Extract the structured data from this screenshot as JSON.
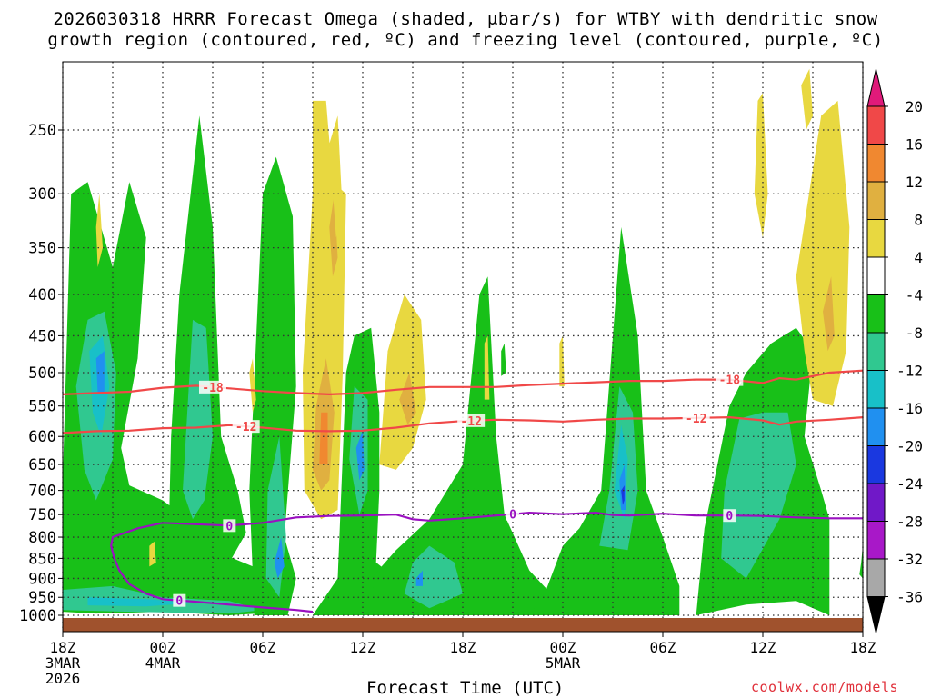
{
  "chart_data": {
    "type": "heatmap",
    "title_line1": "2026030318 HRRR Forecast Omega (shaded, μbar/s) for WTBY with dendritic snow",
    "title_line2": "growth region (contoured, red, ºC) and freezing level (contoured, purple, ºC)",
    "xlabel": "Forecast Time (UTC)",
    "credit": "coolwx.com/models",
    "x_range_hours": [
      0,
      48
    ],
    "x_ticks": [
      {
        "hour": 0,
        "lines": [
          "18Z",
          "3MAR",
          "2026"
        ]
      },
      {
        "hour": 6,
        "lines": [
          "00Z",
          "4MAR"
        ]
      },
      {
        "hour": 12,
        "lines": [
          "06Z"
        ]
      },
      {
        "hour": 18,
        "lines": [
          "12Z"
        ]
      },
      {
        "hour": 24,
        "lines": [
          "18Z"
        ]
      },
      {
        "hour": 30,
        "lines": [
          "00Z",
          "5MAR"
        ]
      },
      {
        "hour": 36,
        "lines": [
          "06Z"
        ]
      },
      {
        "hour": 42,
        "lines": [
          "12Z"
        ]
      },
      {
        "hour": 48,
        "lines": [
          "18Z"
        ]
      }
    ],
    "y_range_hPa": [
      1000,
      200
    ],
    "y_ticks": [
      "250",
      "300",
      "350",
      "400",
      "450",
      "500",
      "550",
      "600",
      "650",
      "700",
      "750",
      "800",
      "850",
      "900",
      "950",
      "1000"
    ],
    "colorbar": {
      "levels": [
        "20",
        "16",
        "12",
        "8",
        "4",
        "-4",
        "-8",
        "-12",
        "-16",
        "-20",
        "-24",
        "-28",
        "-32",
        "-36"
      ],
      "colors": [
        "#e01a7a",
        "#f04848",
        "#f08830",
        "#e0b040",
        "#e8d840",
        "#ffffff",
        "#18c018",
        "#30c890",
        "#18c0c8",
        "#2090f0",
        "#1a38e0",
        "#7018c8",
        "#a818c8",
        "#a8a8a8",
        "#000000"
      ]
    },
    "contours": [
      {
        "name": "dgz-top",
        "label": "-18",
        "color": "#f04848",
        "points": [
          [
            0,
            532
          ],
          [
            2,
            530
          ],
          [
            4,
            528
          ],
          [
            6,
            522
          ],
          [
            8,
            519
          ],
          [
            10,
            523
          ],
          [
            12,
            527
          ],
          [
            14,
            530
          ],
          [
            16,
            532
          ],
          [
            18,
            530
          ],
          [
            20,
            525
          ],
          [
            22,
            521
          ],
          [
            24,
            521
          ],
          [
            26,
            521
          ],
          [
            28,
            518
          ],
          [
            30,
            516
          ],
          [
            32,
            514
          ],
          [
            34,
            512
          ],
          [
            36,
            512
          ],
          [
            38,
            510
          ],
          [
            40,
            510
          ],
          [
            42,
            515
          ],
          [
            43,
            508
          ],
          [
            44,
            510
          ],
          [
            46,
            500
          ],
          [
            48,
            497
          ]
        ],
        "label_hours": [
          9,
          40
        ]
      },
      {
        "name": "dgz-bottom",
        "label": "-12",
        "color": "#f04848",
        "points": [
          [
            0,
            594
          ],
          [
            2,
            591
          ],
          [
            4,
            590
          ],
          [
            6,
            586
          ],
          [
            8,
            585
          ],
          [
            10,
            581
          ],
          [
            12,
            585
          ],
          [
            14,
            590
          ],
          [
            16,
            591
          ],
          [
            18,
            590
          ],
          [
            20,
            585
          ],
          [
            22,
            578
          ],
          [
            24,
            574
          ],
          [
            26,
            572
          ],
          [
            28,
            573
          ],
          [
            30,
            575
          ],
          [
            32,
            572
          ],
          [
            34,
            570
          ],
          [
            36,
            570
          ],
          [
            38,
            569
          ],
          [
            40,
            568
          ],
          [
            42,
            573
          ],
          [
            43,
            580
          ],
          [
            44,
            575
          ],
          [
            46,
            572
          ],
          [
            48,
            568
          ]
        ],
        "label_hours": [
          11,
          24.5,
          38
        ]
      },
      {
        "name": "freezing-level",
        "label": "0",
        "color": "#9a10c0",
        "points": [
          [
            6,
            768
          ],
          [
            8,
            771
          ],
          [
            10,
            774
          ],
          [
            12,
            768
          ],
          [
            14,
            756
          ],
          [
            16,
            753
          ],
          [
            18,
            752
          ],
          [
            20,
            750
          ],
          [
            21,
            760
          ],
          [
            22,
            763
          ],
          [
            24,
            758
          ],
          [
            26,
            752
          ],
          [
            28,
            746
          ],
          [
            30,
            749
          ],
          [
            32,
            746
          ],
          [
            33,
            751
          ],
          [
            34,
            752
          ],
          [
            36,
            748
          ],
          [
            38,
            752
          ],
          [
            40,
            752
          ],
          [
            42,
            753
          ],
          [
            44,
            756
          ],
          [
            46,
            758
          ],
          [
            48,
            758
          ]
        ],
        "label_hours": [
          10,
          27,
          40
        ]
      },
      {
        "name": "freezing-level-low",
        "label": "0",
        "color": "#9a10c0",
        "points": [
          [
            6,
            768
          ],
          [
            4.5,
            780
          ],
          [
            3,
            800
          ],
          [
            2.9,
            820
          ],
          [
            3.1,
            850
          ],
          [
            3.4,
            880
          ],
          [
            4,
            915
          ],
          [
            5,
            940
          ],
          [
            6,
            955
          ],
          [
            8,
            962
          ],
          [
            10,
            970
          ],
          [
            12,
            978
          ],
          [
            14,
            985
          ],
          [
            15,
            990
          ]
        ],
        "label_hours": [
          7
        ]
      }
    ]
  }
}
